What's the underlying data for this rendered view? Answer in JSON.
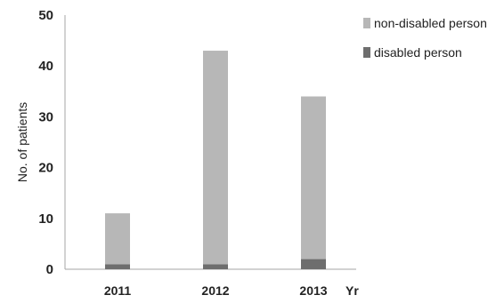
{
  "chart_data": {
    "type": "bar",
    "stacked": true,
    "categories": [
      "2011",
      "2012",
      "2013"
    ],
    "series": [
      {
        "name": "disabled person",
        "values": [
          1,
          1,
          2
        ],
        "color": "#6e6e6e"
      },
      {
        "name": "non-disabled person",
        "values": [
          10,
          42,
          32
        ],
        "color": "#b7b7b7"
      }
    ],
    "ylabel": "No. of patients",
    "xlabel": "Yr",
    "ylim": [
      0,
      50
    ],
    "yticks": [
      0,
      10,
      20,
      30,
      40,
      50
    ],
    "grid": false,
    "legend_position": "right"
  }
}
